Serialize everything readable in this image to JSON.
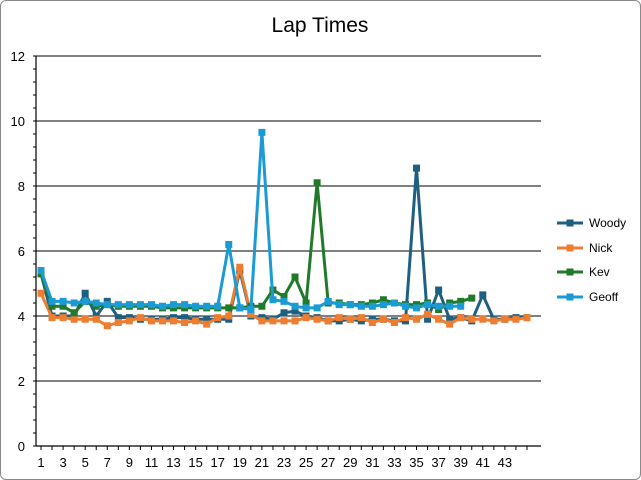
{
  "chart_data": {
    "type": "line",
    "title": "Lap Times",
    "xlabel": "",
    "ylabel": "",
    "ylim": [
      0,
      12
    ],
    "yticks": [
      0,
      2,
      4,
      6,
      8,
      10,
      12
    ],
    "xlim": [
      1,
      45
    ],
    "xtick_labels": [
      1,
      3,
      5,
      7,
      9,
      11,
      13,
      15,
      17,
      19,
      21,
      23,
      25,
      27,
      29,
      31,
      33,
      35,
      37,
      39,
      41,
      43
    ],
    "grid": "horizontal",
    "legend_position": "right",
    "series": [
      {
        "name": "Woody",
        "color": "#1f5f80",
        "values": [
          5.3,
          4.0,
          4.0,
          4.0,
          4.7,
          4.0,
          4.45,
          3.95,
          3.95,
          3.9,
          3.9,
          3.9,
          3.95,
          3.95,
          3.9,
          3.9,
          3.9,
          3.9,
          5.4,
          4.0,
          3.95,
          3.9,
          4.1,
          4.15,
          4.0,
          3.95,
          3.85,
          3.85,
          3.9,
          3.85,
          3.9,
          3.9,
          3.85,
          3.85,
          8.55,
          3.9,
          4.8,
          3.9,
          3.95,
          3.85,
          4.65,
          3.9,
          3.9,
          3.95,
          3.95
        ]
      },
      {
        "name": "Nick",
        "color": "#ed7d31",
        "values": [
          4.7,
          3.95,
          3.95,
          3.9,
          3.9,
          3.9,
          3.7,
          3.8,
          3.85,
          3.95,
          3.85,
          3.85,
          3.85,
          3.8,
          3.85,
          3.75,
          3.95,
          4.0,
          5.5,
          4.05,
          3.85,
          3.85,
          3.85,
          3.85,
          3.95,
          3.9,
          3.85,
          3.95,
          3.9,
          3.95,
          3.8,
          3.9,
          3.8,
          3.95,
          3.9,
          4.05,
          3.9,
          3.75,
          3.95,
          3.9,
          3.9,
          3.85,
          3.9,
          3.9,
          3.95
        ]
      },
      {
        "name": "Kev",
        "color": "#217a2a",
        "values": [
          5.3,
          4.3,
          4.3,
          4.1,
          4.45,
          4.3,
          4.35,
          4.3,
          4.3,
          4.3,
          4.3,
          4.25,
          4.25,
          4.25,
          4.25,
          4.25,
          4.25,
          4.25,
          4.25,
          4.3,
          4.3,
          4.8,
          4.6,
          5.2,
          4.4,
          8.1,
          4.4,
          4.4,
          4.35,
          4.35,
          4.4,
          4.5,
          4.4,
          4.35,
          4.35,
          4.4,
          4.2,
          4.4,
          4.45,
          4.55
        ]
      },
      {
        "name": "Geoff",
        "color": "#1b9bd3",
        "values": [
          5.4,
          4.45,
          4.45,
          4.4,
          4.45,
          4.4,
          4.35,
          4.35,
          4.35,
          4.35,
          4.35,
          4.3,
          4.35,
          4.35,
          4.3,
          4.3,
          4.3,
          6.2,
          4.25,
          4.2,
          9.65,
          4.5,
          4.45,
          4.3,
          4.25,
          4.25,
          4.45,
          4.35,
          4.35,
          4.3,
          4.3,
          4.35,
          4.4,
          4.3,
          4.25,
          4.35,
          4.3,
          4.3,
          4.3
        ]
      }
    ]
  }
}
